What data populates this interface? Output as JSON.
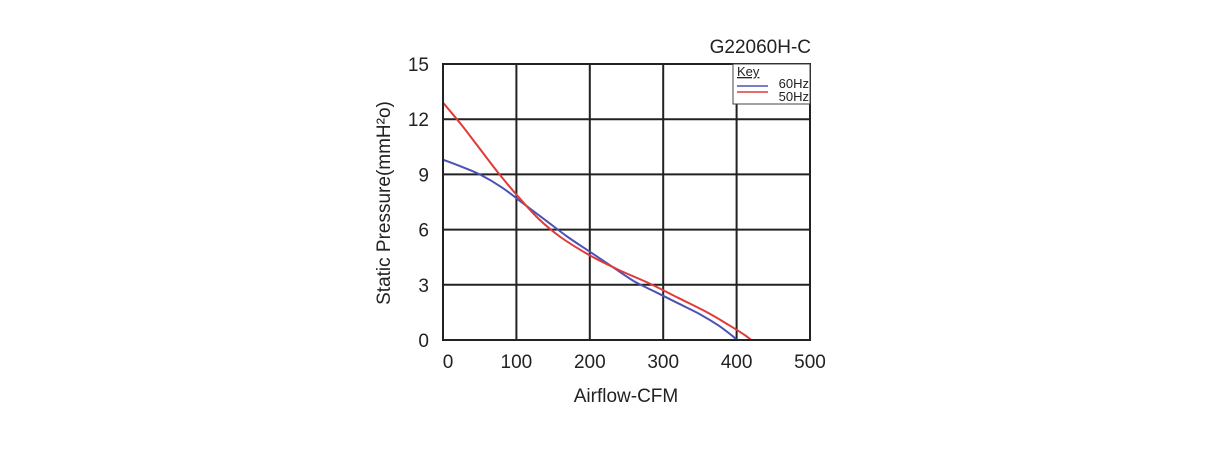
{
  "chart_data": {
    "type": "line",
    "title": "G22060H-C",
    "xlabel": "Airflow-CFM",
    "ylabel": "Static Pressure(mmH²o)",
    "xlim": [
      0,
      500
    ],
    "ylim": [
      0,
      15
    ],
    "xticks": [
      "0",
      "100",
      "200",
      "300",
      "400",
      "500"
    ],
    "yticks": [
      "0",
      "3",
      "6",
      "9",
      "12",
      "15"
    ],
    "xtick_values": [
      0,
      100,
      200,
      300,
      400,
      500
    ],
    "ytick_values": [
      0,
      3,
      6,
      9,
      12,
      15
    ],
    "grid": true,
    "legend": {
      "title": "Key",
      "position": "top-right"
    },
    "series": [
      {
        "name": "60Hz",
        "color": "#4a52b8",
        "x": [
          0,
          20,
          50,
          80,
          110,
          140,
          170,
          200,
          230,
          260,
          290,
          320,
          350,
          375,
          395,
          400
        ],
        "y": [
          9.8,
          9.5,
          9.0,
          8.3,
          7.4,
          6.5,
          5.6,
          4.8,
          4.0,
          3.2,
          2.6,
          2.0,
          1.4,
          0.8,
          0.2,
          0.0
        ]
      },
      {
        "name": "50Hz",
        "color": "#e03a3a",
        "x": [
          0,
          25,
          50,
          75,
          100,
          130,
          160,
          200,
          240,
          280,
          320,
          360,
          390,
          410,
          420
        ],
        "y": [
          12.9,
          11.7,
          10.4,
          9.1,
          7.9,
          6.6,
          5.6,
          4.6,
          3.8,
          3.1,
          2.3,
          1.5,
          0.8,
          0.3,
          0.0
        ]
      }
    ]
  }
}
